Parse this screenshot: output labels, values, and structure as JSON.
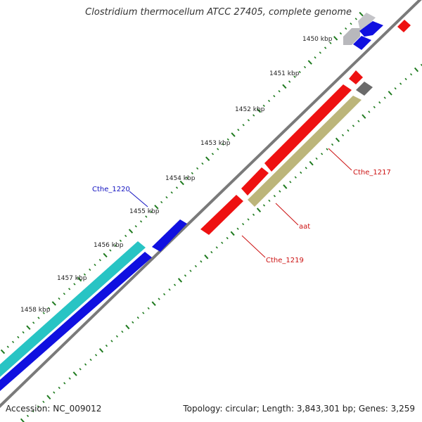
{
  "genome": {
    "title": "Clostridium thermocellum ATCC 27405, complete genome",
    "accession_text": "Accession: NC_009012",
    "summary_text": "Topology: circular; Length: 3,843,301 bp; Genes: 3,259"
  },
  "scale": {
    "tick_labels": [
      "1450 kbp",
      "1451 kbp",
      "1452 kbp",
      "1453 kbp",
      "1454 kbp",
      "1455 kbp",
      "1456 kbp",
      "1457 kbp",
      "1458 kbp"
    ]
  },
  "gene_labels": {
    "cthe_1220": "Cthe_1220",
    "cthe_1217": "Cthe_1217",
    "aat": "aat",
    "cthe_1219": "Cthe_1219"
  },
  "colors": {
    "forward_cds": "#1010e0",
    "reverse_cds": "#ee1111",
    "cyan_feature": "#28c4c4",
    "olive_feature": "#bcb57a",
    "light_gray_feature": "#b8b8bc",
    "dark_gray_feature": "#6a6a6a",
    "backbone": "#7a7a7a",
    "tick_green": "#1e7a1e",
    "forward_label": "#1010c0",
    "reverse_label": "#cc1111"
  }
}
